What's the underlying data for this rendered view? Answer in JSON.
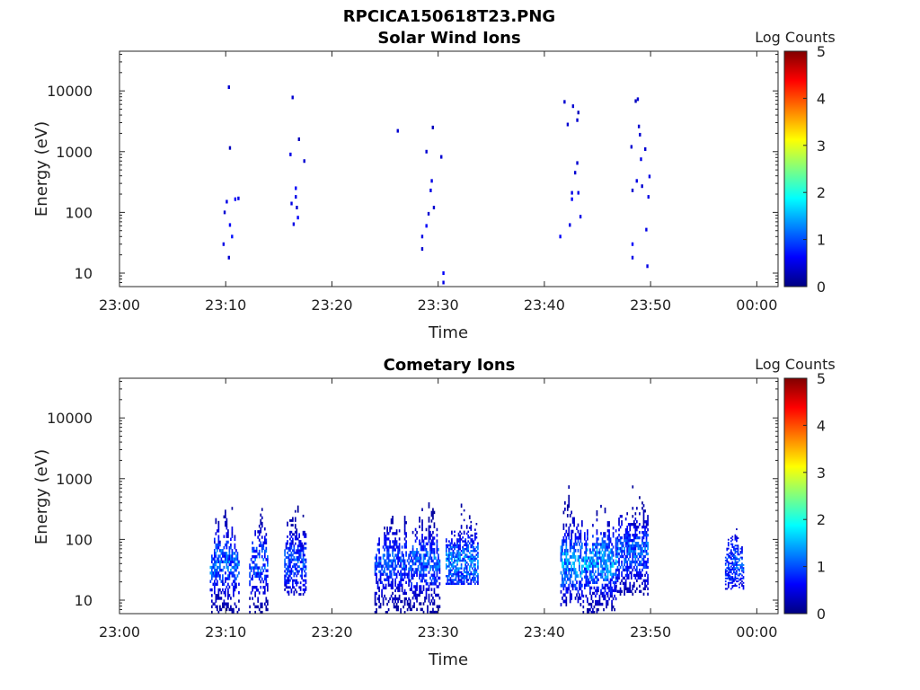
{
  "figure_title": "RPCICA150618T23.PNG",
  "chart_data": [
    {
      "type": "heatmap",
      "title": "Solar Wind Ions",
      "xlabel": "Time",
      "ylabel": "Energy (eV)",
      "x_ticks": [
        "23:00",
        "23:10",
        "23:20",
        "23:30",
        "23:40",
        "23:50",
        "00:00"
      ],
      "x_range_minutes": [
        0,
        62
      ],
      "y_ticks": [
        "10",
        "100",
        "1000",
        "10000"
      ],
      "y_scale": "log",
      "y_range": [
        6,
        45000
      ],
      "colorbar": {
        "label": "Log Counts",
        "ticks": [
          "0",
          "1",
          "2",
          "3",
          "4",
          "5"
        ],
        "range": [
          0,
          5
        ],
        "colormap": "jet"
      },
      "points": [
        [
          10.3,
          11500,
          0.4
        ],
        [
          10.4,
          1150,
          0.3
        ],
        [
          10.1,
          150,
          0.5
        ],
        [
          9.9,
          100,
          0.4
        ],
        [
          10.4,
          62,
          0.6
        ],
        [
          10.6,
          40,
          0.7
        ],
        [
          9.8,
          30,
          0.5
        ],
        [
          10.3,
          18,
          0.4
        ],
        [
          10.9,
          165,
          0.6
        ],
        [
          11.2,
          170,
          0.5
        ],
        [
          16.3,
          7800,
          0.4
        ],
        [
          16.9,
          1600,
          0.3
        ],
        [
          16.1,
          900,
          0.5
        ],
        [
          17.4,
          700,
          0.4
        ],
        [
          16.6,
          250,
          0.6
        ],
        [
          16.6,
          180,
          0.5
        ],
        [
          16.2,
          140,
          0.5
        ],
        [
          16.7,
          120,
          0.4
        ],
        [
          16.8,
          82,
          0.6
        ],
        [
          16.4,
          64,
          0.5
        ],
        [
          26.2,
          2200,
          0.4
        ],
        [
          29.5,
          2500,
          0.3
        ],
        [
          28.9,
          1000,
          0.4
        ],
        [
          30.3,
          820,
          0.4
        ],
        [
          29.4,
          330,
          0.5
        ],
        [
          29.3,
          230,
          0.5
        ],
        [
          29.6,
          120,
          0.4
        ],
        [
          29.1,
          95,
          0.4
        ],
        [
          28.9,
          60,
          0.6
        ],
        [
          28.5,
          40,
          0.5
        ],
        [
          28.5,
          25,
          0.4
        ],
        [
          30.5,
          10,
          0.6
        ],
        [
          30.5,
          7,
          0.5
        ],
        [
          41.9,
          6600,
          0.4
        ],
        [
          42.7,
          5600,
          0.4
        ],
        [
          43.2,
          4400,
          0.3
        ],
        [
          43.1,
          3300,
          0.4
        ],
        [
          42.2,
          2800,
          0.4
        ],
        [
          43.1,
          650,
          0.4
        ],
        [
          42.9,
          450,
          0.4
        ],
        [
          42.6,
          210,
          0.5
        ],
        [
          43.2,
          210,
          0.5
        ],
        [
          42.6,
          165,
          0.6
        ],
        [
          43.4,
          85,
          0.5
        ],
        [
          42.4,
          62,
          0.5
        ],
        [
          41.5,
          40,
          0.6
        ],
        [
          48.8,
          7300,
          0.4
        ],
        [
          48.6,
          6800,
          0.3
        ],
        [
          48.9,
          2600,
          0.4
        ],
        [
          49.0,
          1900,
          0.4
        ],
        [
          48.2,
          1200,
          0.4
        ],
        [
          49.5,
          1100,
          0.4
        ],
        [
          49.1,
          750,
          0.5
        ],
        [
          49.9,
          390,
          0.5
        ],
        [
          48.7,
          330,
          0.5
        ],
        [
          49.2,
          270,
          0.4
        ],
        [
          48.3,
          230,
          0.4
        ],
        [
          49.8,
          180,
          0.5
        ],
        [
          49.6,
          52,
          0.5
        ],
        [
          48.3,
          30,
          0.6
        ],
        [
          48.3,
          18,
          0.5
        ],
        [
          49.7,
          13,
          0.5
        ]
      ]
    },
    {
      "type": "heatmap",
      "title": "Cometary Ions",
      "xlabel": "Time",
      "ylabel": "Energy (eV)",
      "x_ticks": [
        "23:00",
        "23:10",
        "23:20",
        "23:30",
        "23:40",
        "23:50",
        "00:00"
      ],
      "x_range_minutes": [
        0,
        62
      ],
      "y_ticks": [
        "10",
        "100",
        "1000",
        "10000"
      ],
      "y_scale": "log",
      "y_range": [
        6,
        45000
      ],
      "colorbar": {
        "label": "Log Counts",
        "ticks": [
          "0",
          "1",
          "2",
          "3",
          "4",
          "5"
        ],
        "range": [
          0,
          5
        ],
        "colormap": "jet"
      },
      "clusters": [
        {
          "t_start": 8.5,
          "t_end": 11.3,
          "e_min": 6,
          "e_max": 650,
          "peak_e": 40,
          "max_count": 1.3,
          "density": 0.6
        },
        {
          "t_start": 12.2,
          "t_end": 14.0,
          "e_min": 6,
          "e_max": 620,
          "peak_e": 40,
          "max_count": 1.2,
          "density": 0.55
        },
        {
          "t_start": 15.5,
          "t_end": 17.6,
          "e_min": 12,
          "e_max": 560,
          "peak_e": 40,
          "max_count": 1.1,
          "density": 0.55
        },
        {
          "t_start": 24.0,
          "t_end": 27.3,
          "e_min": 6,
          "e_max": 560,
          "peak_e": 40,
          "max_count": 1.1,
          "density": 0.55
        },
        {
          "t_start": 27.3,
          "t_end": 30.2,
          "e_min": 6,
          "e_max": 700,
          "peak_e": 40,
          "max_count": 1.2,
          "density": 0.6
        },
        {
          "t_start": 30.7,
          "t_end": 33.8,
          "e_min": 18,
          "e_max": 450,
          "peak_e": 40,
          "max_count": 1.4,
          "density": 0.6
        },
        {
          "t_start": 41.5,
          "t_end": 43.6,
          "e_min": 8,
          "e_max": 1600,
          "peak_e": 40,
          "max_count": 1.6,
          "density": 0.55
        },
        {
          "t_start": 43.6,
          "t_end": 46.8,
          "e_min": 6,
          "e_max": 560,
          "peak_e": 40,
          "max_count": 1.6,
          "density": 0.6
        },
        {
          "t_start": 46.7,
          "t_end": 49.8,
          "e_min": 12,
          "e_max": 1050,
          "peak_e": 60,
          "max_count": 1.2,
          "density": 0.6
        },
        {
          "t_start": 57.0,
          "t_end": 58.8,
          "e_min": 15,
          "e_max": 180,
          "peak_e": 40,
          "max_count": 1.1,
          "density": 0.55
        }
      ]
    }
  ]
}
